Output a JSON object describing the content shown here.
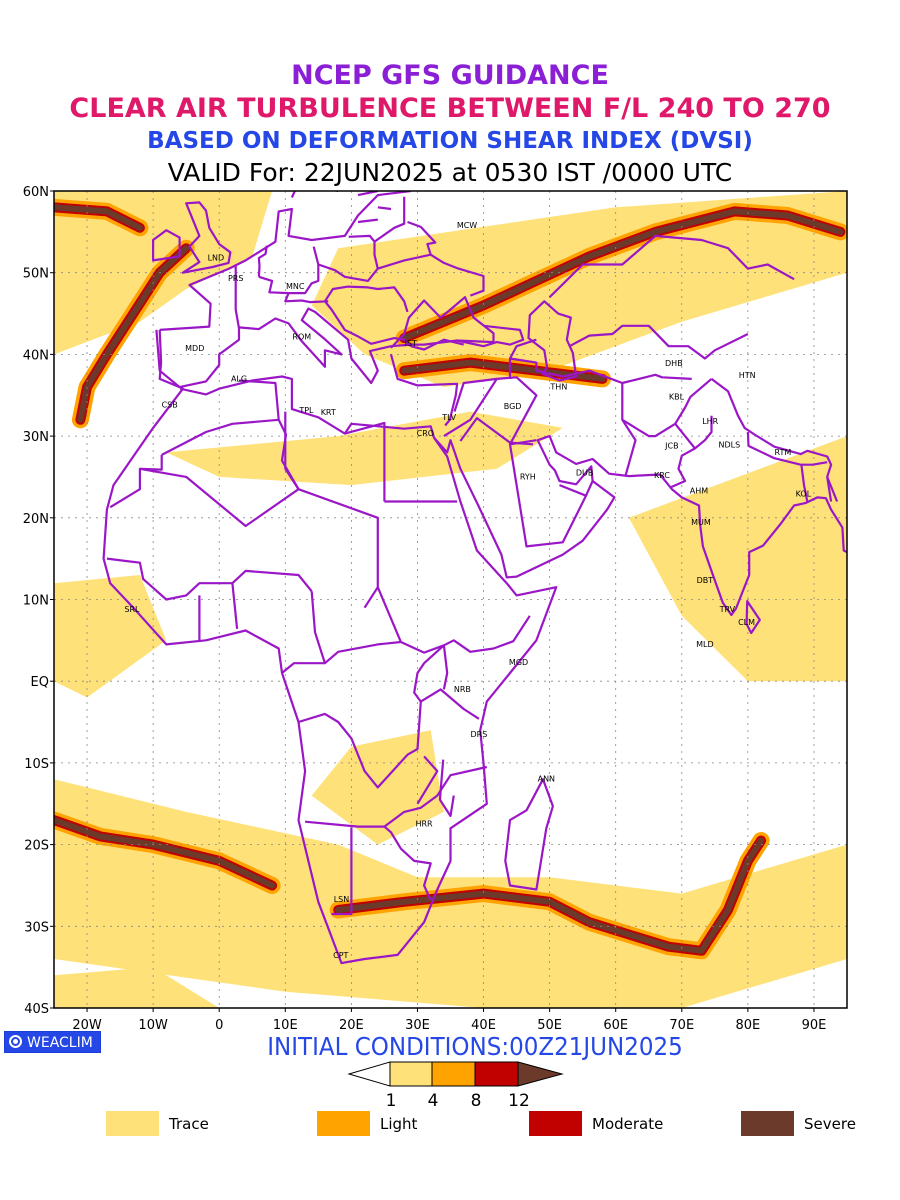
{
  "header": {
    "line1": "NCEP GFS GUIDANCE",
    "line2": "CLEAR AIR TURBULENCE BETWEEN F/L 240 TO 270",
    "line3": "BASED ON DEFORMATION SHEAR INDEX (DVSI)",
    "line4": "VALID For: 22JUN2025 at 0530 IST /0000 UTC"
  },
  "colors": {
    "line1": "#8b1fd6",
    "line2": "#e0186a",
    "line3": "#2447e6",
    "trace": "#ffe17a",
    "light": "#ffa300",
    "moderate": "#c10000",
    "severe": "#6b3a2a",
    "boundary": "#9b16c7"
  },
  "map": {
    "lon_range": [
      -25,
      95
    ],
    "lat_range": [
      -40,
      60
    ],
    "lat_labels": [
      "60N",
      "50N",
      "40N",
      "30N",
      "20N",
      "10N",
      "EQ",
      "10S",
      "20S",
      "30S",
      "40S"
    ],
    "lon_labels": [
      "20W",
      "10W",
      "0",
      "10E",
      "20E",
      "30E",
      "40E",
      "50E",
      "60E",
      "70E",
      "80E",
      "90E"
    ],
    "stations": [
      {
        "code": "MCW",
        "lon": 37.5,
        "lat": 55.5
      },
      {
        "code": "LND",
        "lon": -0.5,
        "lat": 51.5
      },
      {
        "code": "PRS",
        "lon": 2.5,
        "lat": 49.0
      },
      {
        "code": "MNC",
        "lon": 11.5,
        "lat": 48.0
      },
      {
        "code": "ROM",
        "lon": 12.5,
        "lat": 41.8
      },
      {
        "code": "IST",
        "lon": 29.0,
        "lat": 41.0
      },
      {
        "code": "MDD",
        "lon": -3.7,
        "lat": 40.4
      },
      {
        "code": "ALG",
        "lon": 3.0,
        "lat": 36.7
      },
      {
        "code": "CSB",
        "lon": -7.5,
        "lat": 33.5
      },
      {
        "code": "TPL",
        "lon": 13.2,
        "lat": 32.8
      },
      {
        "code": "KRT",
        "lon": 16.5,
        "lat": 32.6
      },
      {
        "code": "CRO",
        "lon": 31.2,
        "lat": 30.0
      },
      {
        "code": "TLV",
        "lon": 34.8,
        "lat": 32.0
      },
      {
        "code": "BGD",
        "lon": 44.4,
        "lat": 33.3
      },
      {
        "code": "THN",
        "lon": 51.4,
        "lat": 35.7
      },
      {
        "code": "RYH",
        "lon": 46.7,
        "lat": 24.7
      },
      {
        "code": "DUB",
        "lon": 55.3,
        "lat": 25.2
      },
      {
        "code": "DHB",
        "lon": 68.8,
        "lat": 38.6
      },
      {
        "code": "KBL",
        "lon": 69.2,
        "lat": 34.5
      },
      {
        "code": "HTN",
        "lon": 79.9,
        "lat": 37.1
      },
      {
        "code": "LHR",
        "lon": 74.3,
        "lat": 31.5
      },
      {
        "code": "JCB",
        "lon": 68.5,
        "lat": 28.5
      },
      {
        "code": "NDLS",
        "lon": 77.2,
        "lat": 28.6
      },
      {
        "code": "KRC",
        "lon": 67.0,
        "lat": 24.9
      },
      {
        "code": "AHM",
        "lon": 72.6,
        "lat": 23.0
      },
      {
        "code": "RTM",
        "lon": 85.3,
        "lat": 27.7
      },
      {
        "code": "KOL",
        "lon": 88.4,
        "lat": 22.6
      },
      {
        "code": "MUM",
        "lon": 72.9,
        "lat": 19.1
      },
      {
        "code": "DBT",
        "lon": 73.5,
        "lat": 12.0
      },
      {
        "code": "TRV",
        "lon": 76.9,
        "lat": 8.5
      },
      {
        "code": "CLM",
        "lon": 79.8,
        "lat": 6.9
      },
      {
        "code": "MLD",
        "lon": 73.5,
        "lat": 4.2
      },
      {
        "code": "SRL",
        "lon": -13.2,
        "lat": 8.5
      },
      {
        "code": "MGD",
        "lon": 45.3,
        "lat": 2.0
      },
      {
        "code": "NRB",
        "lon": 36.8,
        "lat": -1.3
      },
      {
        "code": "DRS",
        "lon": 39.3,
        "lat": -6.8
      },
      {
        "code": "ANN",
        "lon": 49.5,
        "lat": -12.3
      },
      {
        "code": "HRR",
        "lon": 31.0,
        "lat": -17.8
      },
      {
        "code": "LSN",
        "lon": 18.5,
        "lat": -27.0
      },
      {
        "code": "CPT",
        "lon": 18.4,
        "lat": -33.9
      }
    ]
  },
  "footer": {
    "badge": "WEACLIM",
    "initial_conditions": "INITIAL CONDITIONS:00Z21JUN2025",
    "colorbar_ticks": [
      "1",
      "4",
      "8",
      "12"
    ]
  },
  "legend": [
    {
      "label": "Trace",
      "color": "#ffe17a"
    },
    {
      "label": "Light",
      "color": "#ffa300"
    },
    {
      "label": "Moderate",
      "color": "#c10000"
    },
    {
      "label": "Severe",
      "color": "#6b3a2a"
    }
  ]
}
